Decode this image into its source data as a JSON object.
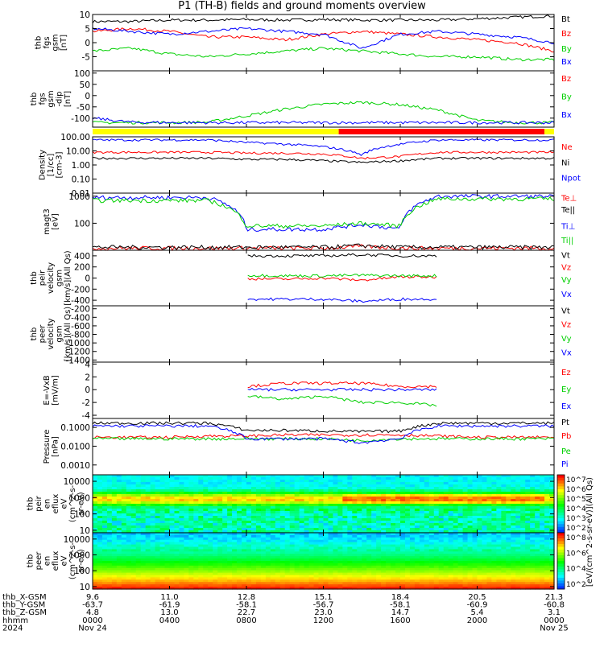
{
  "title": "P1 (TH-B) fields and ground moments overview",
  "colors": {
    "black": "#000000",
    "red": "#ff0000",
    "green": "#00d000",
    "blue": "#0000ff",
    "yellow": "#ffff00"
  },
  "chart_data": [
    {
      "type": "line",
      "panel": "fgs_gsm",
      "ylabel": [
        "thb",
        "fgs",
        "gsm",
        "[nT]"
      ],
      "ylim": [
        -10,
        10
      ],
      "ticks": [
        {
          "v": 10,
          "label": "10"
        },
        {
          "v": 5,
          "label": "5"
        },
        {
          "v": 0,
          "label": "0"
        },
        {
          "v": -5,
          "label": "-5"
        }
      ],
      "series": [
        {
          "name": "Bt",
          "color": "black",
          "values": [
            7.5,
            7.5,
            8,
            8,
            8.2,
            8,
            8.2,
            8,
            8,
            8,
            8.5,
            9,
            9.5
          ]
        },
        {
          "name": "Bz",
          "color": "red",
          "values": [
            4,
            5,
            4,
            2,
            2,
            1,
            3,
            4,
            3,
            2,
            1,
            0,
            -3
          ]
        },
        {
          "name": "By",
          "color": "green",
          "values": [
            -3,
            -2,
            -4,
            -5,
            -4,
            -3,
            -2,
            -3,
            -4,
            -5,
            -5,
            -6,
            -6
          ]
        },
        {
          "name": "Bx",
          "color": "blue",
          "values": [
            5,
            4,
            3,
            4,
            5,
            4,
            3,
            -2,
            3,
            4,
            3,
            2,
            0
          ]
        }
      ]
    },
    {
      "type": "line",
      "panel": "fgs_gsm_dip",
      "ylabel": [
        "thb",
        "fgs",
        "gsm",
        "-dip",
        "[nT]"
      ],
      "ylim": [
        -140,
        110
      ],
      "ticks": [
        {
          "v": 100,
          "label": "100"
        },
        {
          "v": 50,
          "label": "50"
        },
        {
          "v": 0,
          "label": "0"
        },
        {
          "v": -50,
          "label": "-50"
        },
        {
          "v": -100,
          "label": "-100"
        }
      ],
      "series": [
        {
          "name": "Bz",
          "color": "red",
          "values": []
        },
        {
          "name": "By",
          "color": "green",
          "values": [
            -120,
            -120,
            -120,
            -118,
            -90,
            -60,
            -38,
            -30,
            -40,
            -65,
            -110,
            -120,
            -120
          ]
        },
        {
          "name": "Bx",
          "color": "blue",
          "values": [
            -100,
            -118,
            -120,
            -120,
            -120,
            -120,
            -120,
            -120,
            -120,
            -120,
            -120,
            -120,
            -120
          ]
        }
      ]
    },
    {
      "type": "line",
      "panel": "density",
      "ylabel": [
        "Density",
        "[1/cc]",
        "[cm-3]"
      ],
      "yscale": "log",
      "ylim": [
        0.01,
        100
      ],
      "ticks": [
        {
          "v": 100,
          "label": "100.00"
        },
        {
          "v": 10,
          "label": "10.00"
        },
        {
          "v": 1,
          "label": "1.00"
        },
        {
          "v": 0.1,
          "label": "0.10"
        },
        {
          "v": 0.01,
          "label": "0.01"
        }
      ],
      "series": [
        {
          "name": "Ne",
          "color": "red",
          "values": [
            8,
            8,
            8,
            8,
            7,
            7,
            6,
            3,
            4,
            8,
            8,
            8,
            8
          ]
        },
        {
          "name": "Ni",
          "color": "black",
          "values": [
            3,
            3,
            3,
            3,
            2.5,
            2.5,
            2,
            1.5,
            2,
            3,
            3,
            3,
            3
          ]
        },
        {
          "name": "Npot",
          "color": "blue",
          "values": [
            60,
            60,
            60,
            60,
            40,
            30,
            20,
            5,
            30,
            60,
            60,
            60,
            60
          ]
        }
      ]
    },
    {
      "type": "line",
      "panel": "temperature",
      "ylabel": [
        "magt3",
        "[eV]"
      ],
      "yscale": "log",
      "ylim": [
        10,
        1300
      ],
      "ticks": [
        {
          "v": 1000,
          "label": "1000"
        },
        {
          "v": 100,
          "label": "100"
        }
      ],
      "series": [
        {
          "name": "Te⊥",
          "color": "red",
          "values": [
            12,
            12,
            12,
            12,
            12,
            12,
            12,
            14,
            12,
            12,
            12,
            12,
            12
          ]
        },
        {
          "name": "Te||",
          "color": "black",
          "values": [
            13,
            13,
            13,
            13,
            13,
            13,
            13,
            15,
            13,
            13,
            13,
            13,
            13
          ]
        },
        {
          "name": "Ti⊥",
          "color": "blue",
          "values": [
            900,
            900,
            900,
            900,
            60,
            60,
            60,
            90,
            60,
            1000,
            1000,
            1000,
            1000
          ]
        },
        {
          "name": "Ti||",
          "color": "green",
          "values": [
            700,
            700,
            700,
            700,
            80,
            80,
            80,
            100,
            80,
            800,
            800,
            800,
            800
          ]
        }
      ]
    },
    {
      "type": "line",
      "panel": "peir_velocity",
      "ylabel": [
        "thb",
        "peir",
        "velocity",
        "gsm",
        "[km/s](All Qs)"
      ],
      "ylim": [
        -500,
        500
      ],
      "ticks": [
        {
          "v": 400,
          "label": "400"
        },
        {
          "v": 200,
          "label": "200"
        },
        {
          "v": 0,
          "label": "0"
        },
        {
          "v": -200,
          "label": "-200"
        },
        {
          "v": -400,
          "label": "-400"
        }
      ],
      "series": [
        {
          "name": "Vt",
          "color": "black",
          "values": [
            null,
            null,
            null,
            null,
            400,
            400,
            400,
            420,
            400,
            400,
            null,
            null,
            null
          ]
        },
        {
          "name": "Vz",
          "color": "red",
          "values": [
            null,
            null,
            null,
            null,
            -10,
            -20,
            0,
            -40,
            20,
            20,
            null,
            null,
            null
          ]
        },
        {
          "name": "Vy",
          "color": "green",
          "values": [
            null,
            null,
            null,
            null,
            50,
            40,
            40,
            50,
            40,
            40,
            null,
            null,
            null
          ]
        },
        {
          "name": "Vx",
          "color": "blue",
          "values": [
            null,
            null,
            null,
            null,
            -380,
            -380,
            -380,
            -420,
            -380,
            -380,
            null,
            null,
            null
          ]
        }
      ]
    },
    {
      "type": "line",
      "panel": "peer_velocity",
      "ylabel": [
        "thb",
        "peer",
        "velocity",
        "gsm",
        "[km/s](All Qs)"
      ],
      "ylim": [
        -1450,
        -130
      ],
      "ticks": [
        {
          "v": -200,
          "label": "-200"
        },
        {
          "v": -400,
          "label": "-400"
        },
        {
          "v": -600,
          "label": "-600"
        },
        {
          "v": -800,
          "label": "-800"
        },
        {
          "v": -1000,
          "label": "-1000"
        },
        {
          "v": -1200,
          "label": "-1200"
        },
        {
          "v": -1400,
          "label": "-1400"
        }
      ],
      "series": [
        {
          "name": "Vt",
          "color": "black",
          "values": []
        },
        {
          "name": "Vz",
          "color": "red",
          "values": []
        },
        {
          "name": "Vy",
          "color": "green",
          "values": []
        },
        {
          "name": "Vx",
          "color": "blue",
          "values": []
        }
      ]
    },
    {
      "type": "line",
      "panel": "efield",
      "ylabel": [
        "E=-VxB",
        "[mV/m]"
      ],
      "ylim": [
        -4.5,
        4.3
      ],
      "ticks": [
        {
          "v": 4,
          "label": "4"
        },
        {
          "v": 2,
          "label": "2"
        },
        {
          "v": 0,
          "label": "0"
        },
        {
          "v": -2,
          "label": "-2"
        },
        {
          "v": -4,
          "label": "-4"
        }
      ],
      "series": [
        {
          "name": "Ez",
          "color": "red",
          "values": [
            null,
            null,
            null,
            null,
            0.5,
            1,
            1,
            1,
            0.5,
            0.5,
            null,
            null,
            null
          ]
        },
        {
          "name": "Ey",
          "color": "green",
          "values": [
            null,
            null,
            null,
            null,
            -1,
            -1.5,
            -1,
            -2,
            -2,
            -2.5,
            null,
            null,
            null
          ]
        },
        {
          "name": "Ex",
          "color": "blue",
          "values": [
            null,
            null,
            null,
            null,
            0,
            0,
            0,
            0,
            0,
            0,
            null,
            null,
            null
          ]
        }
      ]
    },
    {
      "type": "line",
      "panel": "pressure",
      "ylabel": [
        "Pressure",
        "[nPa]"
      ],
      "yscale": "log",
      "ylim": [
        0.0003,
        0.3
      ],
      "ticks": [
        {
          "v": 0.1,
          "label": "0.1000"
        },
        {
          "v": 0.01,
          "label": "0.0100"
        },
        {
          "v": 0.001,
          "label": "0.0010"
        },
        {
          "v": 0.0001,
          "label": "0.0001"
        }
      ],
      "series": [
        {
          "name": "Pt",
          "color": "black",
          "values": [
            0.17,
            0.17,
            0.17,
            0.17,
            0.07,
            0.07,
            0.065,
            0.06,
            0.065,
            0.17,
            0.17,
            0.17,
            0.17
          ]
        },
        {
          "name": "Pb",
          "color": "red",
          "values": [
            0.03,
            0.03,
            0.03,
            0.035,
            0.035,
            0.04,
            0.04,
            0.04,
            0.04,
            0.035,
            0.03,
            0.03,
            0.03
          ]
        },
        {
          "name": "Pe",
          "color": "green",
          "values": [
            0.025,
            0.025,
            0.025,
            0.025,
            0.025,
            0.025,
            0.025,
            0.02,
            0.025,
            0.025,
            0.025,
            0.025,
            0.025
          ]
        },
        {
          "name": "Pi",
          "color": "blue",
          "values": [
            0.12,
            0.12,
            0.12,
            0.12,
            0.025,
            0.025,
            0.025,
            0.015,
            0.025,
            0.12,
            0.12,
            0.12,
            0.12
          ]
        }
      ]
    },
    {
      "type": "heatmap",
      "panel": "peir_spectrogram",
      "ylabel": [
        "thb",
        "peir",
        "en",
        "eflux",
        "eV",
        "(cm^2-s-",
        "sr-eV)"
      ],
      "yscale": "log",
      "ylim": [
        7,
        25000
      ],
      "ticks": [
        {
          "v": 10000,
          "label": "10000"
        },
        {
          "v": 1000,
          "label": "1000"
        },
        {
          "v": 100,
          "label": "100"
        },
        {
          "v": 10,
          "label": "10"
        }
      ],
      "colorbar": {
        "label": "[eV/(cm^2-s-sr-eV)](All Qs)",
        "ticks": [
          {
            "exp": 7,
            "label": "10^7"
          },
          {
            "exp": 6,
            "label": "10^6"
          },
          {
            "exp": 5,
            "label": "10^5"
          },
          {
            "exp": 4,
            "label": "10^4"
          },
          {
            "exp": 3,
            "label": "10^3"
          },
          {
            "exp": 2,
            "label": "10^2"
          }
        ]
      }
    },
    {
      "type": "heatmap",
      "panel": "peer_spectrogram",
      "ylabel": [
        "thb",
        "peer",
        "en",
        "eflux",
        "eV",
        "(cm^2-s-",
        "sr-eV)"
      ],
      "yscale": "log",
      "ylim": [
        7,
        25000
      ],
      "ticks": [
        {
          "v": 10000,
          "label": "10000"
        },
        {
          "v": 1000,
          "label": "1000"
        },
        {
          "v": 100,
          "label": "100"
        },
        {
          "v": 10,
          "label": "10"
        }
      ],
      "colorbar": {
        "label": "[eV/(cm^2-s-sr-eV)](All Qs)",
        "ticks": [
          {
            "exp": 8,
            "label": "10^8"
          },
          {
            "exp": 6,
            "label": "10^6"
          },
          {
            "exp": 4,
            "label": "10^4"
          },
          {
            "exp": 2,
            "label": "10^2"
          }
        ]
      }
    }
  ],
  "mode_bar": [
    {
      "from": 0,
      "to": 12.8,
      "color": "yellow"
    },
    {
      "from": 12.8,
      "to": 23.5,
      "color": "red"
    },
    {
      "from": 23.5,
      "to": 24,
      "color": "yellow"
    }
  ],
  "xaxis": {
    "range": [
      0,
      24
    ],
    "rows": [
      {
        "label": "thb_X-GSM",
        "values": [
          "9.6",
          "11.0",
          "12.8",
          "15.1",
          "18.4",
          "20.5",
          "21.3"
        ]
      },
      {
        "label": "thb_Y-GSM",
        "values": [
          "-63.7",
          "-61.9",
          "-58.1",
          "-56.7",
          "-58.1",
          "-60.9",
          "-60.8"
        ]
      },
      {
        "label": "thb_Z-GSM",
        "values": [
          "4.8",
          "13.0",
          "22.7",
          "23.0",
          "14.7",
          "5.4",
          "3.1"
        ]
      },
      {
        "label": "hhmm",
        "values": [
          "0000",
          "0400",
          "0800",
          "1200",
          "1600",
          "2000",
          "0000"
        ]
      },
      {
        "label": "2024",
        "values": [
          "Nov 24",
          "",
          "",
          "",
          "",
          "",
          "Nov 25"
        ]
      }
    ],
    "tick_hours": [
      0,
      4,
      8,
      12,
      16,
      20,
      24
    ]
  }
}
